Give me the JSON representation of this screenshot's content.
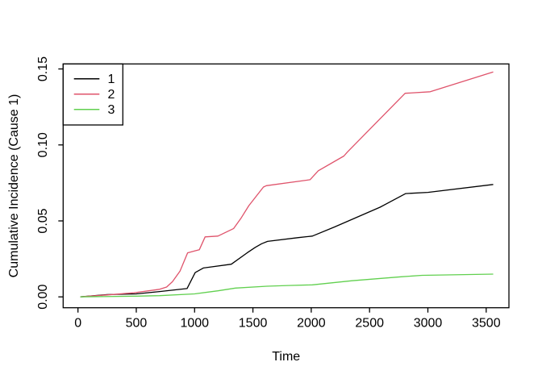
{
  "chart_data": {
    "type": "line",
    "title": "",
    "xlabel": "Time",
    "ylabel": "Cumulative Incidence (Cause 1)",
    "x_ticks": [
      0,
      500,
      1000,
      1500,
      2000,
      2500,
      3000,
      3500
    ],
    "y_ticks": [
      "0.00",
      "0.05",
      "0.10",
      "0.15"
    ],
    "y_tick_values": [
      0,
      0.05,
      0.1,
      0.15
    ],
    "xlim": [
      -127,
      3695
    ],
    "ylim": [
      -0.00715,
      0.1533
    ],
    "grid": false,
    "box": true,
    "background": "#ffffff",
    "axis_color": "#000000",
    "legend": {
      "position": "topleft",
      "entries": [
        {
          "label": "1",
          "color": "#000000"
        },
        {
          "label": "2",
          "color": "#DF536B"
        },
        {
          "label": "3",
          "color": "#61D04F"
        }
      ]
    },
    "series": [
      {
        "name": "1",
        "color": "#000000",
        "points": [
          [
            20,
            0
          ],
          [
            250,
            0.0015
          ],
          [
            500,
            0.002
          ],
          [
            700,
            0.0035
          ],
          [
            935,
            0.0055
          ],
          [
            1005,
            0.016
          ],
          [
            1075,
            0.019
          ],
          [
            1315,
            0.0215
          ],
          [
            1450,
            0.029
          ],
          [
            1520,
            0.0326
          ],
          [
            1575,
            0.035
          ],
          [
            1625,
            0.0365
          ],
          [
            1890,
            0.039
          ],
          [
            2010,
            0.04
          ],
          [
            2200,
            0.046
          ],
          [
            2590,
            0.059
          ],
          [
            2810,
            0.068
          ],
          [
            3000,
            0.0688
          ],
          [
            3560,
            0.074
          ]
        ]
      },
      {
        "name": "2",
        "color": "#DF536B",
        "points": [
          [
            20,
            0
          ],
          [
            100,
            0.0005
          ],
          [
            250,
            0.0013
          ],
          [
            480,
            0.0027
          ],
          [
            700,
            0.005
          ],
          [
            760,
            0.0065
          ],
          [
            810,
            0.01
          ],
          [
            875,
            0.017
          ],
          [
            940,
            0.029
          ],
          [
            1000,
            0.0302
          ],
          [
            1040,
            0.031
          ],
          [
            1090,
            0.0395
          ],
          [
            1200,
            0.04
          ],
          [
            1335,
            0.045
          ],
          [
            1400,
            0.052
          ],
          [
            1465,
            0.06
          ],
          [
            1590,
            0.0723
          ],
          [
            1615,
            0.0732
          ],
          [
            1990,
            0.0771
          ],
          [
            2060,
            0.083
          ],
          [
            2280,
            0.0927
          ],
          [
            2310,
            0.0953
          ],
          [
            2805,
            0.134
          ],
          [
            3020,
            0.135
          ],
          [
            3560,
            0.148
          ]
        ]
      },
      {
        "name": "3",
        "color": "#61D04F",
        "points": [
          [
            20,
            0
          ],
          [
            500,
            0.0005
          ],
          [
            700,
            0.0008
          ],
          [
            1000,
            0.002
          ],
          [
            1200,
            0.004
          ],
          [
            1350,
            0.0058
          ],
          [
            1620,
            0.007
          ],
          [
            1800,
            0.0075
          ],
          [
            2010,
            0.0079
          ],
          [
            2350,
            0.0106
          ],
          [
            2770,
            0.0132
          ],
          [
            2950,
            0.0142
          ],
          [
            3560,
            0.015
          ]
        ]
      }
    ]
  }
}
